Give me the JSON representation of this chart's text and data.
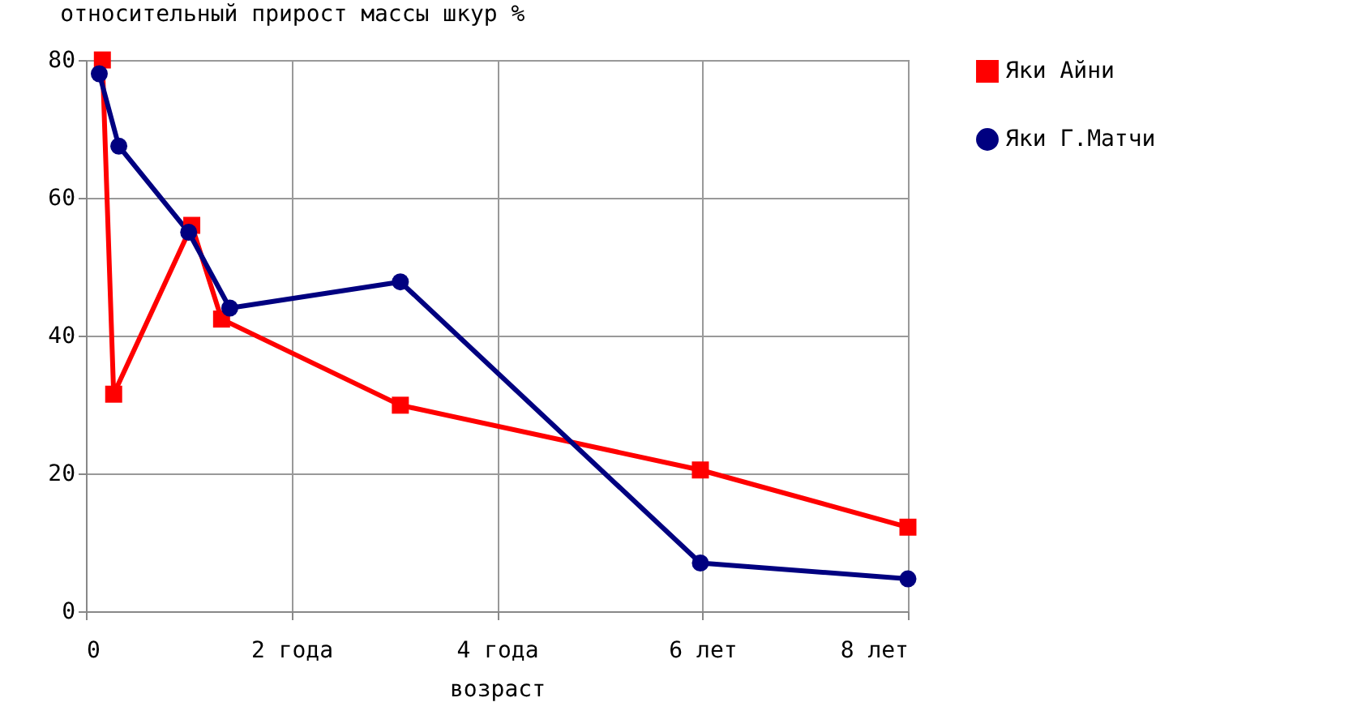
{
  "chart_data": {
    "type": "line",
    "title": "относительный прирост массы шкур  %",
    "xlabel": "возраст",
    "xlim": [
      0,
      8
    ],
    "xticks": [
      0,
      {
        "value": 2,
        "label": "2 года"
      },
      {
        "value": 4,
        "label": "4 года"
      },
      {
        "value": 6,
        "label": "6 лет"
      },
      {
        "value": 8,
        "label": "8 лет"
      }
    ],
    "ylim": [
      0,
      80
    ],
    "yticks": [
      0,
      20,
      40,
      60,
      80
    ],
    "grid": true,
    "legend": "right",
    "series": [
      {
        "name": "Яки Айни",
        "color": "#ff0000",
        "marker": "square",
        "x": [
          0.16,
          0.27,
          1.03,
          1.32,
          3.06,
          5.98,
          8
        ],
        "values": [
          80,
          31.5,
          56,
          42.4,
          29.9,
          20.5,
          12.2
        ]
      },
      {
        "name": "Яки Г.Матчи",
        "color": "#000080",
        "marker": "circle",
        "x": [
          0.13,
          0.32,
          1.0,
          1.4,
          3.06,
          5.98,
          8
        ],
        "values": [
          78,
          67.5,
          55,
          44,
          47.8,
          7,
          4.7
        ]
      }
    ]
  }
}
